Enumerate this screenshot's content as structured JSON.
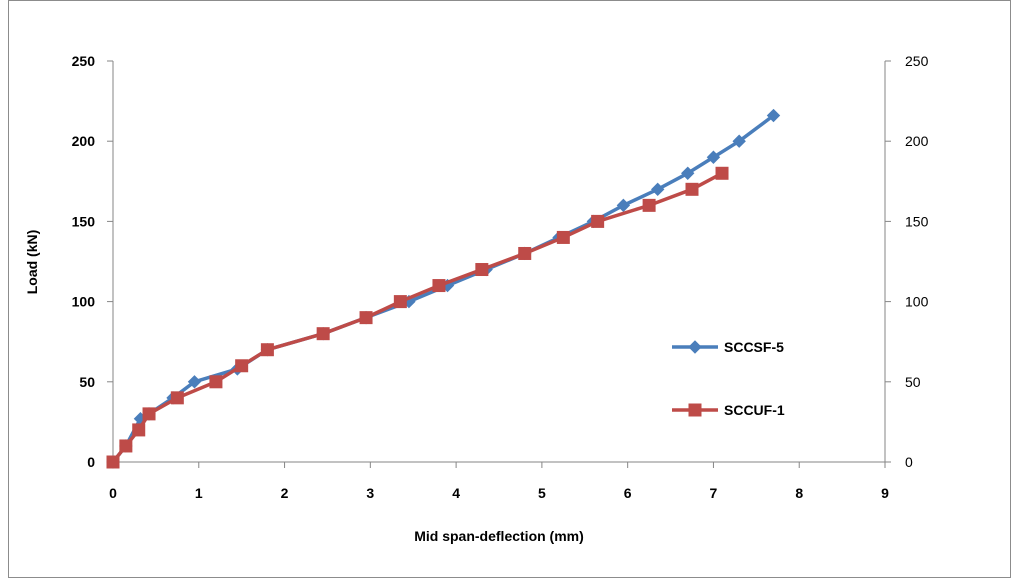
{
  "chart_data": {
    "type": "line",
    "title": "",
    "xlabel": "Mid span-deflection  (mm)",
    "ylabel": "Load (kN)",
    "xlim": [
      0,
      9
    ],
    "ylim": [
      0,
      250
    ],
    "x_ticks": [
      "0",
      "1",
      "2",
      "3",
      "4",
      "5",
      "6",
      "7",
      "8",
      "9"
    ],
    "y_ticks": [
      "0",
      "50",
      "100",
      "150",
      "200",
      "250"
    ],
    "y_ticks_right": [
      "0",
      "50",
      "100",
      "150",
      "200",
      "250"
    ],
    "grid": false,
    "legend_position": "right",
    "series": [
      {
        "name": "SCCSF-5",
        "color": "#4a7ebb",
        "marker": "diamond",
        "x": [
          0,
          0.15,
          0.32,
          0.42,
          0.7,
          0.95,
          1.45,
          1.8,
          2.45,
          2.95,
          3.45,
          3.9,
          4.35,
          4.8,
          5.2,
          5.6,
          5.95,
          6.35,
          6.7,
          7.0,
          7.3,
          7.7
        ],
        "y": [
          0,
          10,
          27,
          30,
          40,
          50,
          58,
          70,
          80,
          90,
          100,
          110,
          120,
          130,
          140,
          150,
          160,
          170,
          180,
          190,
          200,
          216
        ]
      },
      {
        "name": "SCCUF-1",
        "color": "#be4b48",
        "marker": "square",
        "x": [
          0,
          0.15,
          0.3,
          0.42,
          0.75,
          1.2,
          1.5,
          1.8,
          2.45,
          2.95,
          3.35,
          3.8,
          4.3,
          4.8,
          5.25,
          5.65,
          6.25,
          6.75,
          7.1
        ],
        "y": [
          0,
          10,
          20,
          30,
          40,
          50,
          60,
          70,
          80,
          90,
          100,
          110,
          120,
          130,
          140,
          150,
          160,
          170,
          180
        ]
      }
    ]
  }
}
